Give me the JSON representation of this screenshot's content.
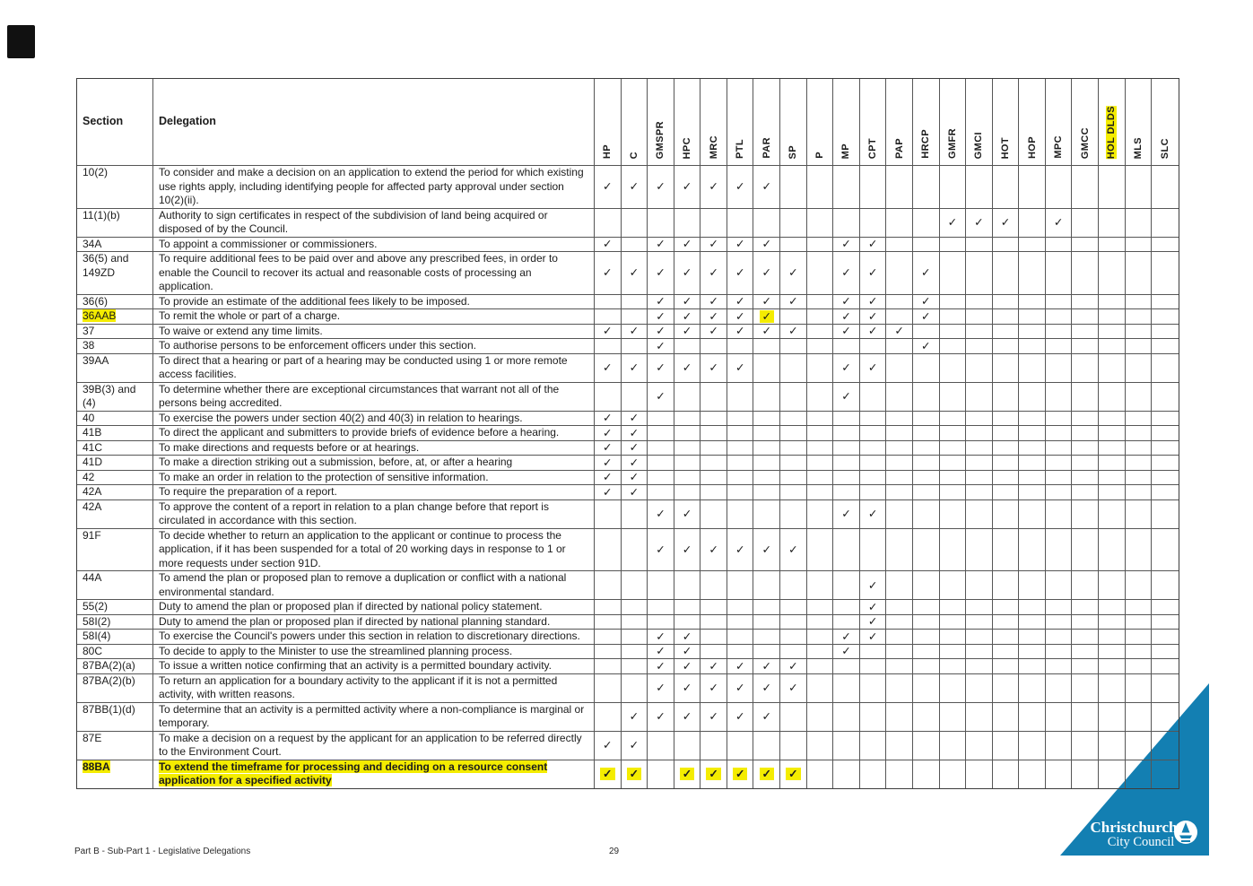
{
  "document": {
    "footer_left": "Part B - Sub-Part 1 - Legislative Delegations",
    "page_number": "29"
  },
  "logo": {
    "line1": "Christchurch",
    "line2": "City Council"
  },
  "colors": {
    "highlight_yellow": "#f4ec00",
    "triangle_blue": "#137fb2",
    "grid_line": "#565656",
    "text": "#1c1c1c"
  },
  "table": {
    "check_glyph": "✓",
    "header": {
      "section_label": "Section",
      "delegation_label": "Delegation"
    },
    "columns": [
      {
        "label": "HP"
      },
      {
        "label": "C"
      },
      {
        "label": "GMSPR"
      },
      {
        "label": "HPC"
      },
      {
        "label": "MRC"
      },
      {
        "label": "PTL"
      },
      {
        "label": "PAR"
      },
      {
        "label": "SP"
      },
      {
        "label": "P"
      },
      {
        "label": "MP"
      },
      {
        "label": "CPT"
      },
      {
        "label": "PAP"
      },
      {
        "label": "HRCP"
      },
      {
        "label": "GMFR"
      },
      {
        "label": "GMCI"
      },
      {
        "label": "HOT"
      },
      {
        "label": "HOP"
      },
      {
        "label": "MPC"
      },
      {
        "label": "GMCC"
      },
      {
        "label": "HOL DLDS",
        "highlight": true
      },
      {
        "label": "MLS"
      },
      {
        "label": "SLC"
      }
    ],
    "rows": [
      {
        "section": "10(2)",
        "delegation": "To consider and make a decision on an application to extend the period for which existing use rights apply, including identifying people for affected party approval under section 10(2)(ii).",
        "checks": [
          0,
          1,
          2,
          3,
          4,
          5,
          6
        ]
      },
      {
        "section": "11(1)(b)",
        "delegation": "Authority to sign certificates in respect of the subdivision of land being acquired or disposed of by the Council.",
        "checks": [
          13,
          14,
          15,
          17
        ]
      },
      {
        "section": "34A",
        "delegation": "To appoint a commissioner or commissioners.",
        "checks": [
          0,
          2,
          3,
          4,
          5,
          6,
          9,
          10
        ]
      },
      {
        "section": "36(5) and 149ZD",
        "delegation": "To require additional fees to be paid over and above any prescribed fees, in order to enable the Council to recover its actual and reasonable costs of processing an application.",
        "checks": [
          0,
          1,
          2,
          3,
          4,
          5,
          6,
          7,
          9,
          10,
          12
        ]
      },
      {
        "section": "36(6)",
        "delegation": "To provide an estimate of the additional fees likely to be imposed.",
        "checks": [
          2,
          3,
          4,
          5,
          6,
          7,
          9,
          10,
          12
        ]
      },
      {
        "section": "36AAB",
        "section_highlight": true,
        "delegation": "To remit the whole or part of a charge.",
        "checks": [
          2,
          3,
          4,
          5,
          6,
          9,
          10,
          12
        ],
        "highlight_checks": [
          6
        ]
      },
      {
        "section": "37",
        "delegation": "To waive or extend any time limits.",
        "checks": [
          0,
          1,
          2,
          3,
          4,
          5,
          6,
          7,
          9,
          10,
          11
        ]
      },
      {
        "section": "38",
        "delegation": "To authorise persons to be enforcement officers under this section.",
        "checks": [
          2,
          12
        ]
      },
      {
        "section": "39AA",
        "delegation": "To direct that a hearing or part of a hearing may be conducted using 1 or more remote access facilities.",
        "checks": [
          0,
          1,
          2,
          3,
          4,
          5,
          9,
          10
        ]
      },
      {
        "section": "39B(3) and (4)",
        "delegation": "To determine whether there are exceptional circumstances that warrant not all of the persons being accredited.",
        "checks": [
          2,
          9
        ]
      },
      {
        "section": "40",
        "delegation": "To exercise the powers under section 40(2) and 40(3) in relation to hearings.",
        "checks": [
          0,
          1
        ]
      },
      {
        "section": "41B",
        "delegation": "To direct the applicant and submitters to provide briefs of evidence before a hearing.",
        "checks": [
          0,
          1
        ]
      },
      {
        "section": "41C",
        "delegation": "To make directions and requests before or at hearings.",
        "checks": [
          0,
          1
        ]
      },
      {
        "section": "41D",
        "delegation": "To make a direction striking out a submission, before, at, or after a hearing",
        "checks": [
          0,
          1
        ]
      },
      {
        "section": "42",
        "delegation": "To make an order in relation to the protection of sensitive information.",
        "checks": [
          0,
          1
        ]
      },
      {
        "section": "42A",
        "delegation": "To require the preparation of a report.",
        "checks": [
          0,
          1
        ]
      },
      {
        "section": "42A",
        "delegation": "To approve the content of a report in relation to a plan change before that report is circulated in accordance with this section.",
        "checks": [
          2,
          3,
          9,
          10
        ]
      },
      {
        "section": "91F",
        "delegation": "To decide whether to return an application to the applicant or continue to process the application, if it has been suspended for a total of 20 working days in response to 1 or more requests under section 91D.",
        "checks": [
          2,
          3,
          4,
          5,
          6,
          7
        ]
      },
      {
        "section": "44A",
        "delegation": "To amend the plan or proposed plan to remove a duplication or conflict with a national environmental standard.",
        "checks": [
          10
        ]
      },
      {
        "section": "55(2)",
        "delegation": "Duty to amend the plan or proposed plan if directed by national policy statement.",
        "checks": [
          10
        ]
      },
      {
        "section": "58I(2)",
        "delegation": "Duty to amend the plan or proposed plan if directed by national planning standard.",
        "checks": [
          10
        ]
      },
      {
        "section": "58I(4)",
        "delegation": "To exercise the Council's powers under this section in relation to discretionary directions.",
        "checks": [
          2,
          3,
          9,
          10
        ]
      },
      {
        "section": "80C",
        "delegation": "To decide to apply to the Minister to use the streamlined planning process.",
        "checks": [
          2,
          3,
          9
        ]
      },
      {
        "section": "87BA(2)(a)",
        "delegation": "To issue a written notice confirming that an activity is a permitted boundary activity.",
        "checks": [
          2,
          3,
          4,
          5,
          6,
          7
        ]
      },
      {
        "section": "87BA(2)(b)",
        "delegation": "To return an application for a boundary activity to the applicant if it is not a permitted activity, with written reasons.",
        "checks": [
          2,
          3,
          4,
          5,
          6,
          7
        ]
      },
      {
        "section": "87BB(1)(d)",
        "delegation": "To determine that an activity is a permitted activity where a non-compliance is marginal or temporary.",
        "checks": [
          1,
          2,
          3,
          4,
          5,
          6
        ]
      },
      {
        "section": "87E",
        "delegation": "To make a decision on a request by the applicant for an application to be referred directly to the Environment Court.",
        "checks": [
          0,
          1
        ]
      },
      {
        "section": "88BA",
        "section_highlight": true,
        "delegation_highlight": true,
        "bold": true,
        "delegation": "To extend the timeframe for processing and deciding on a resource consent application for a specified activity",
        "checks": [
          0,
          1,
          3,
          4,
          5,
          6,
          7
        ],
        "highlight_checks": [
          0,
          1,
          3,
          4,
          5,
          6,
          7
        ]
      }
    ]
  }
}
